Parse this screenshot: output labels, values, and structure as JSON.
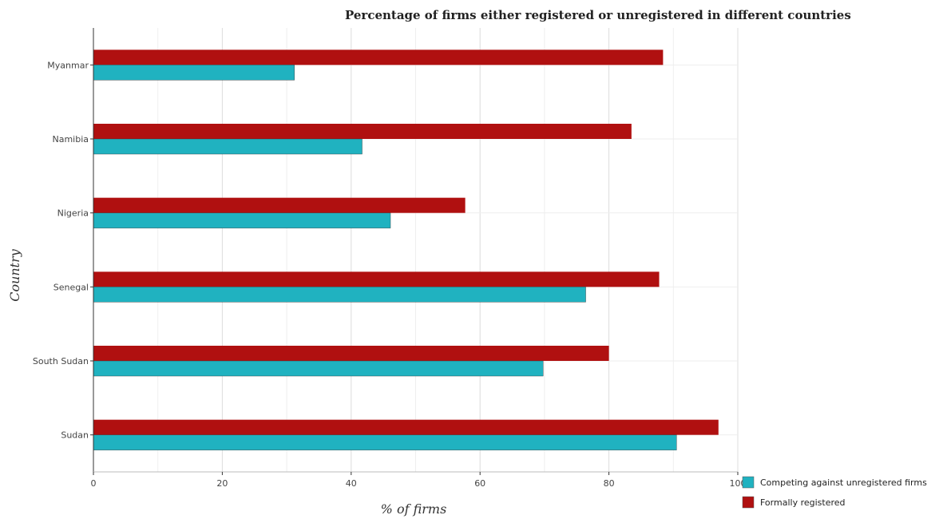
{
  "chart_data": {
    "type": "bar",
    "orientation": "horizontal",
    "title": "Percentage of firms either registered or unregistered in different countries",
    "xlabel": "% of firms",
    "ylabel": "Country",
    "categories": [
      "Myanmar",
      "Namibia",
      "Nigeria",
      "Senegal",
      "South Sudan",
      "Sudan"
    ],
    "series": [
      {
        "name": "Competing against unregistered firms",
        "color": "#20b2c0",
        "values": [
          31.2,
          41.7,
          46.1,
          76.4,
          69.8,
          90.5
        ]
      },
      {
        "name": "Formally registered",
        "color": "#b01010",
        "values": [
          88.4,
          83.5,
          57.7,
          87.8,
          80.0,
          97.0
        ]
      }
    ],
    "xlim": [
      0,
      100
    ],
    "xticks": [
      0,
      20,
      40,
      60,
      80,
      100
    ],
    "grid": true,
    "legend_position": "bottom-right"
  }
}
